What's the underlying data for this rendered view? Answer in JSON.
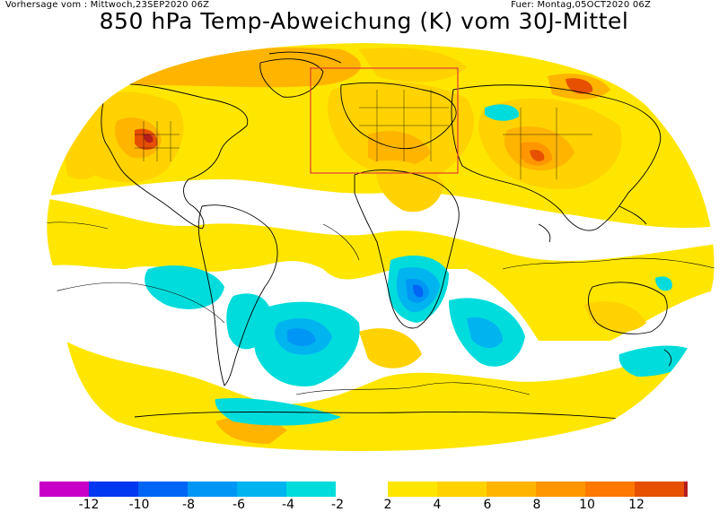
{
  "header": {
    "issued": "Vorhersage vom : Mittwoch,23SEP2020 06Z",
    "valid": "Fuer: Montag,05OCT2020 06Z",
    "title": "850 hPa Temp-Abweichung (K) vom 30J-Mittel"
  },
  "legend": {
    "ticks": [
      "-12",
      "-10",
      "-8",
      "-6",
      "-4",
      "-2",
      "2",
      "4",
      "6",
      "8",
      "10",
      "12"
    ],
    "neg_colors": [
      "#c800c8",
      "#0037f0",
      "#0064f5",
      "#0096f5",
      "#00b4f0",
      "#00dcdc"
    ],
    "pos_colors": [
      "#ffe600",
      "#ffd200",
      "#ffb400",
      "#ff9600",
      "#ff7800",
      "#e65000",
      "#b41e1e"
    ]
  },
  "colors": {
    "highlight_box": "#e03c32",
    "coastline": "#000000",
    "ocean_background": "#ffffff"
  }
}
